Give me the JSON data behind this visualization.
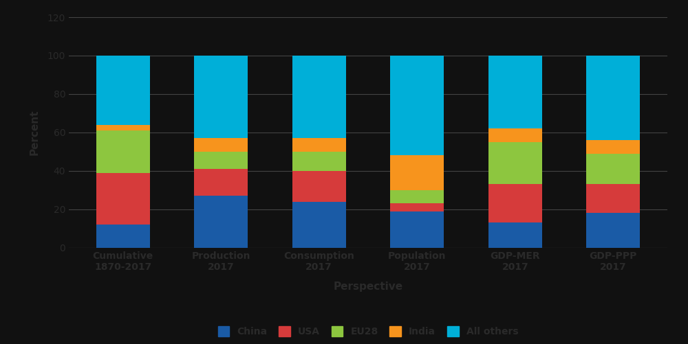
{
  "categories": [
    "Cumulative\n1870-2017",
    "Production\n2017",
    "Consumption\n2017",
    "Population\n2017",
    "GDP-MER\n2017",
    "GDP-PPP\n2017"
  ],
  "series": {
    "China": [
      12,
      27,
      24,
      19,
      13,
      18
    ],
    "USA": [
      27,
      14,
      16,
      4,
      20,
      15
    ],
    "EU28": [
      22,
      9,
      10,
      7,
      22,
      16
    ],
    "India": [
      3,
      7,
      7,
      18,
      7,
      7
    ],
    "All others": [
      36,
      43,
      43,
      52,
      38,
      44
    ]
  },
  "colors": {
    "China": "#1a5ba6",
    "USA": "#d63b3b",
    "EU28": "#8dc63f",
    "India": "#f7941d",
    "All others": "#00afd8"
  },
  "legend_order": [
    "China",
    "USA",
    "EU28",
    "India",
    "All others"
  ],
  "ylabel": "Percent",
  "xlabel": "Perspective",
  "ylim": [
    0,
    120
  ],
  "yticks": [
    0,
    20,
    40,
    60,
    80,
    100,
    120
  ],
  "background_color": "#111111",
  "grid_color": "#444444",
  "text_color": "#333333",
  "bar_width": 0.55
}
